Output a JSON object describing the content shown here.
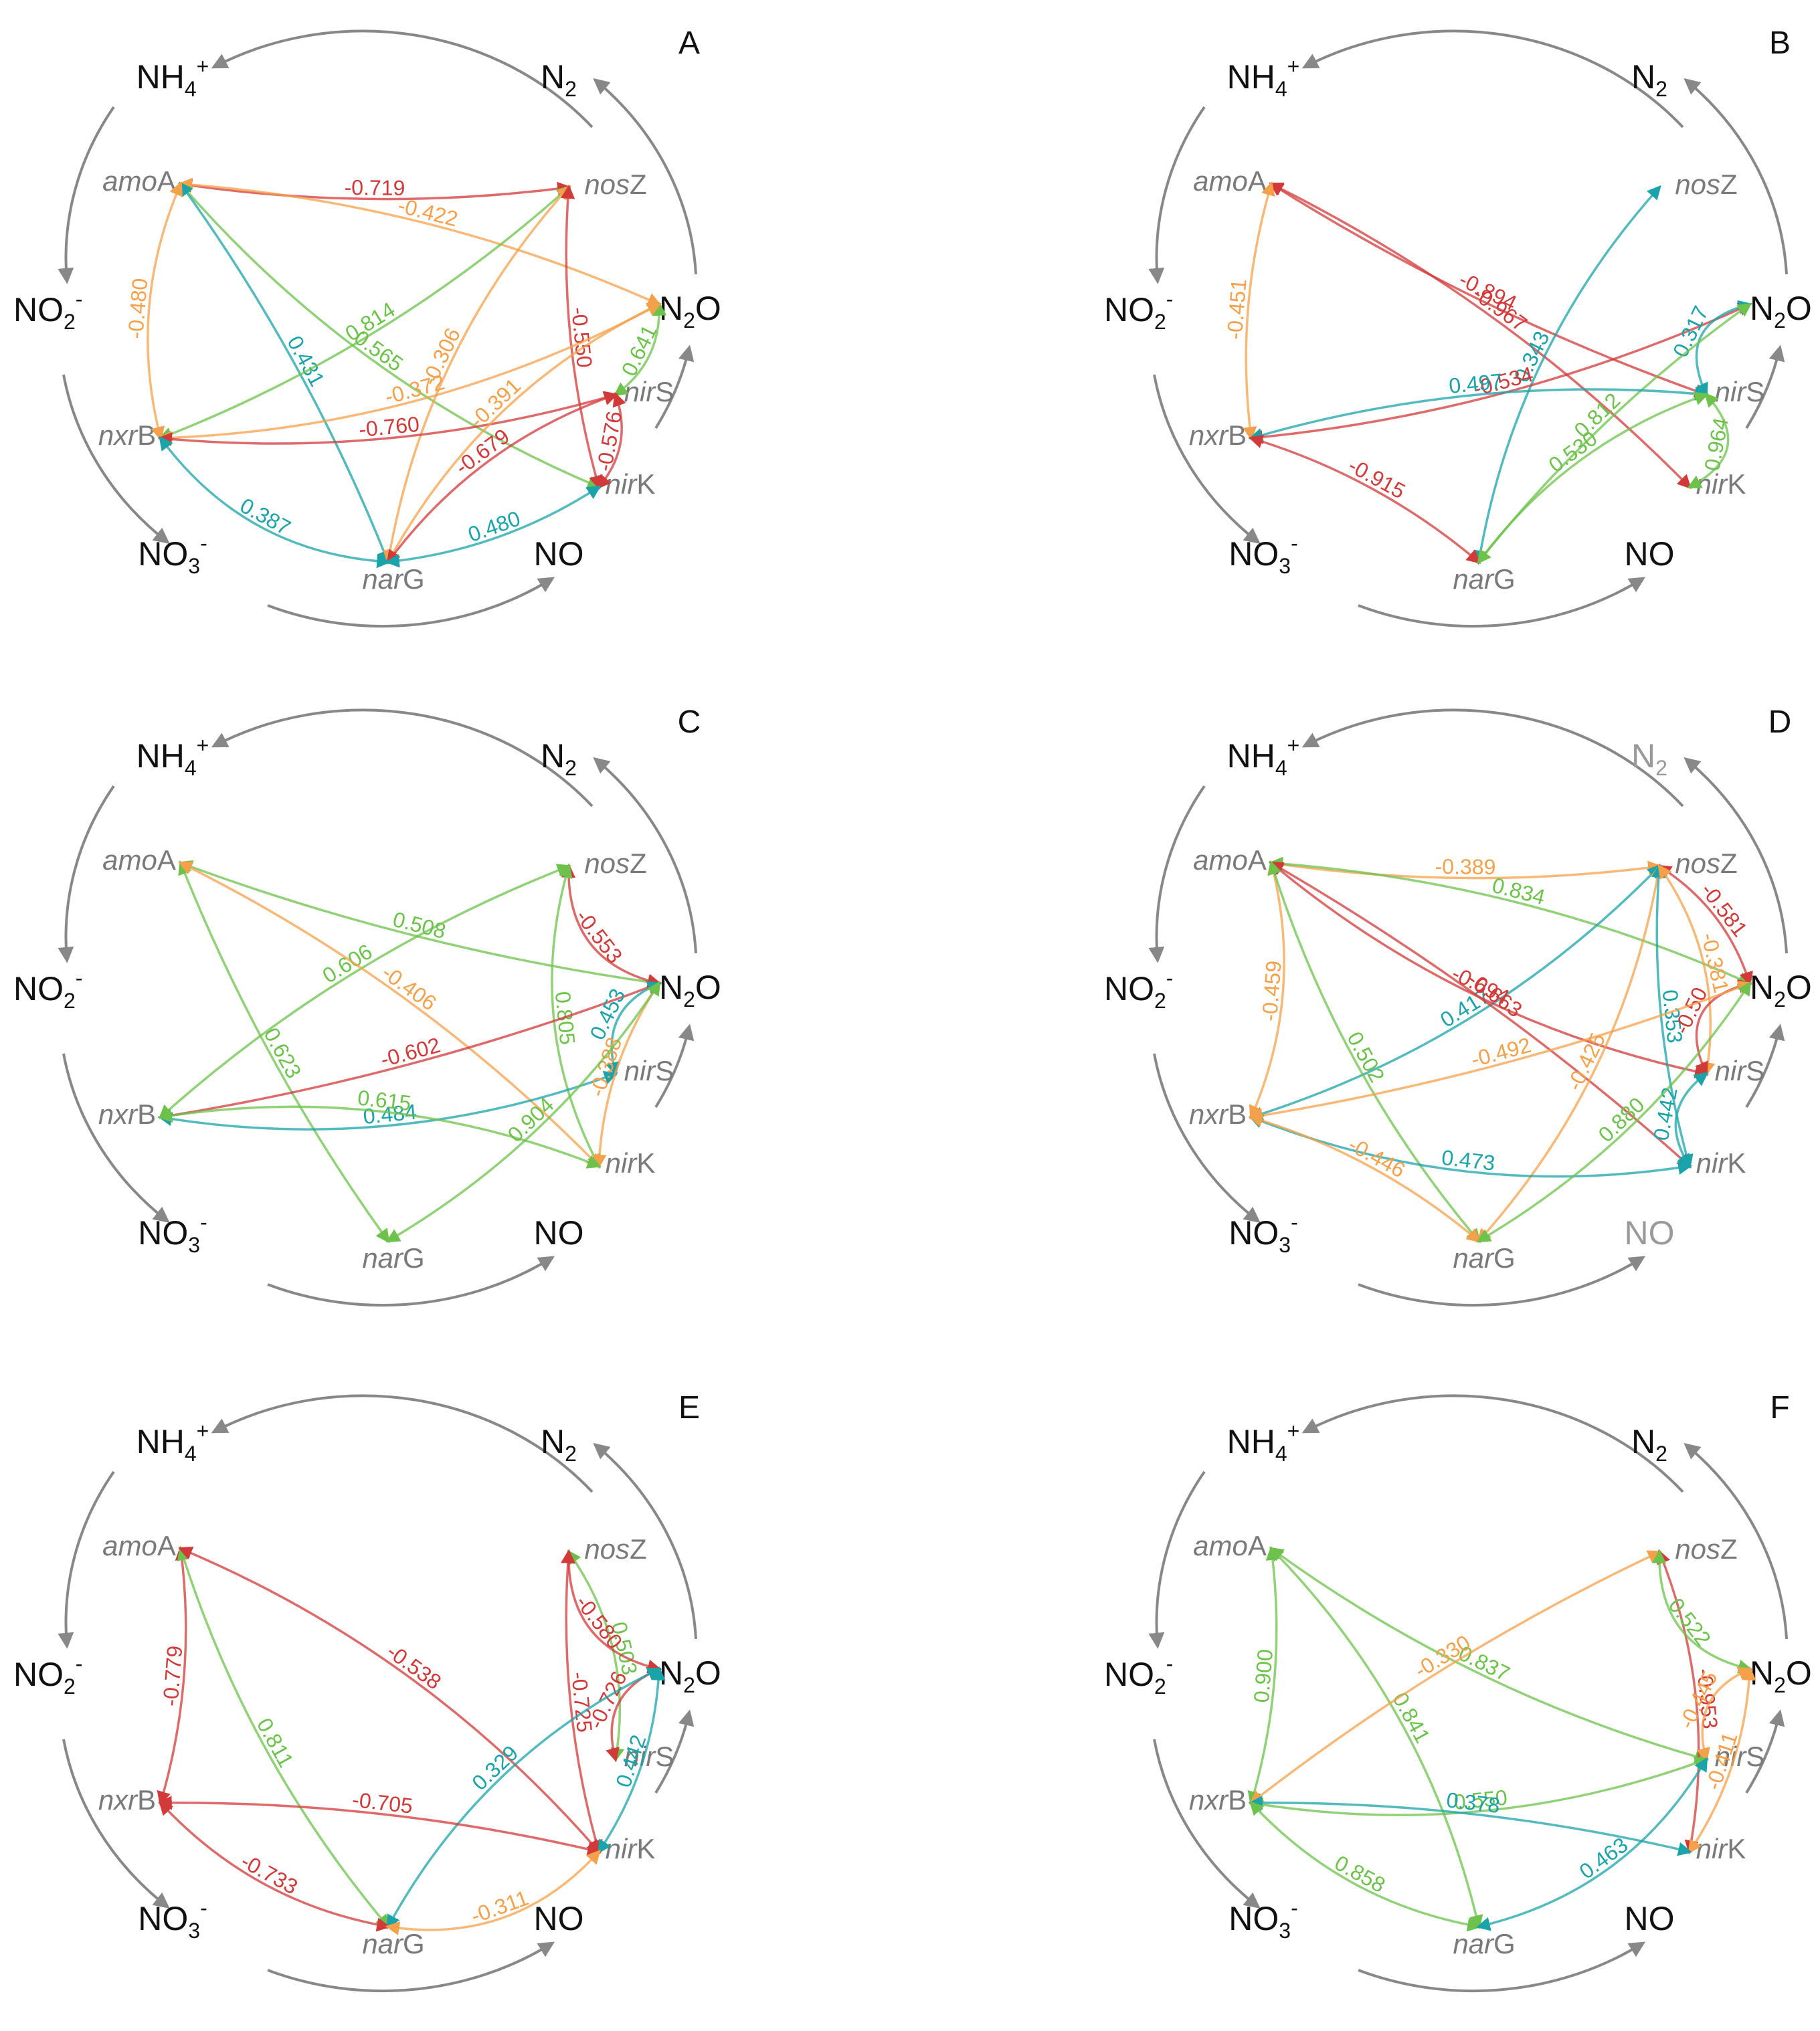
{
  "colors": {
    "positive_strong": "#1aa3a8",
    "positive": "#6cc24a",
    "negative_moderate": "#f5a04a",
    "negative_strong": "#d23a3a",
    "cycle": "#888888"
  },
  "icons": {
    "cycle_arrow": "cycle-arrow-icon",
    "edge_arrow": "edge-arrowhead-icon"
  },
  "species": {
    "nh4": {
      "base": "NH",
      "sub": "4",
      "sup": "+"
    },
    "n2": {
      "base": "N",
      "sub": "2"
    },
    "no2": {
      "base": "NO",
      "sub": "2",
      "sup": "-"
    },
    "n2o": {
      "base": "N",
      "sub": "2",
      "tail": "O"
    },
    "no3": {
      "base": "NO",
      "sub": "3",
      "sup": "-"
    },
    "no": {
      "base": "NO"
    }
  },
  "genes": {
    "amoA": {
      "italic": "amo",
      "suffix": "A"
    },
    "nosZ": {
      "italic": "nos",
      "suffix": "Z"
    },
    "nxrB": {
      "italic": "nxr",
      "suffix": "B"
    },
    "nirS": {
      "italic": "nir",
      "suffix": "S"
    },
    "nirK": {
      "italic": "nir",
      "suffix": "K"
    },
    "narG": {
      "italic": "nar",
      "suffix": "G"
    }
  },
  "panels": [
    {
      "letter": "A",
      "greyed": [],
      "edges": [
        {
          "from": "nosZ",
          "to": "amoA",
          "value": "-0.719",
          "color": "negative_strong"
        },
        {
          "from": "N2O",
          "to": "amoA",
          "value": "-0.422",
          "color": "negative_moderate"
        },
        {
          "from": "nirK",
          "to": "amoA",
          "value": "0.565",
          "color": "positive"
        },
        {
          "from": "narG",
          "to": "amoA",
          "value": "0.431",
          "color": "positive_strong"
        },
        {
          "from": "nosZ",
          "to": "nxrB",
          "value": "0.814",
          "color": "positive"
        },
        {
          "from": "nosZ",
          "to": "narG",
          "value": "-0.306",
          "color": "negative_moderate"
        },
        {
          "from": "nirK",
          "to": "nosZ",
          "value": "-0.550",
          "color": "negative_strong"
        },
        {
          "from": "amoA",
          "to": "nxrB",
          "value": "-0.480",
          "color": "negative_moderate"
        },
        {
          "from": "N2O",
          "to": "nxrB",
          "value": "-0.372",
          "color": "negative_moderate"
        },
        {
          "from": "nirS",
          "to": "N2O",
          "value": "0.641",
          "color": "positive"
        },
        {
          "from": "nirS",
          "to": "nxrB",
          "value": "-0.760",
          "color": "negative_strong"
        },
        {
          "from": "N2O",
          "to": "narG",
          "value": "-0.391",
          "color": "negative_moderate"
        },
        {
          "from": "nirS",
          "to": "nirK",
          "value": "-0.576",
          "color": "negative_strong"
        },
        {
          "from": "nirS",
          "to": "narG",
          "value": "-0.679",
          "color": "negative_strong"
        },
        {
          "from": "narG",
          "to": "nxrB",
          "value": "0.387",
          "color": "positive_strong"
        },
        {
          "from": "narG",
          "to": "nirK",
          "value": "0.480",
          "color": "positive_strong"
        }
      ]
    },
    {
      "letter": "B",
      "greyed": [],
      "edges": [
        {
          "from": "nirS",
          "to": "amoA",
          "value": "-0.894",
          "color": "negative_strong"
        },
        {
          "from": "nirK",
          "to": "amoA",
          "value": "-0.967",
          "color": "negative_strong"
        },
        {
          "from": "narG",
          "to": "nosZ",
          "value": "0.343",
          "color": "positive_strong"
        },
        {
          "from": "amoA",
          "to": "nxrB",
          "value": "-0.451",
          "color": "negative_moderate"
        },
        {
          "from": "N2O",
          "to": "nxrB",
          "value": "-0.534",
          "color": "negative_strong"
        },
        {
          "from": "N2O",
          "to": "nirS",
          "value": "0.317",
          "color": "positive_strong"
        },
        {
          "from": "narG",
          "to": "N2O",
          "value": "0.812",
          "color": "positive"
        },
        {
          "from": "nirS",
          "to": "nxrB",
          "value": "0.497",
          "color": "positive_strong"
        },
        {
          "from": "nirS",
          "to": "nirK",
          "value": "0.964",
          "color": "positive"
        },
        {
          "from": "narG",
          "to": "nxrB",
          "value": "-0.915",
          "color": "negative_strong"
        },
        {
          "from": "narG",
          "to": "nirS",
          "value": "0.530",
          "color": "positive"
        }
      ]
    },
    {
      "letter": "C",
      "greyed": [],
      "edges": [
        {
          "from": "N2O",
          "to": "amoA",
          "value": "0.508",
          "color": "positive"
        },
        {
          "from": "nosZ",
          "to": "nxrB",
          "value": "0.606",
          "color": "positive"
        },
        {
          "from": "N2O",
          "to": "nosZ",
          "value": "-0.553",
          "color": "negative_strong"
        },
        {
          "from": "amoA",
          "to": "narG",
          "value": "0.623",
          "color": "positive"
        },
        {
          "from": "amoA",
          "to": "nirK",
          "value": "-0.406",
          "color": "negative_moderate"
        },
        {
          "from": "nosZ",
          "to": "nirK",
          "value": "0.805",
          "color": "positive"
        },
        {
          "from": "N2O",
          "to": "nxrB",
          "value": "-0.602",
          "color": "negative_strong"
        },
        {
          "from": "N2O",
          "to": "nirS",
          "value": "0.453",
          "color": "positive_strong"
        },
        {
          "from": "nirS",
          "to": "nxrB",
          "value": "0.484",
          "color": "positive_strong"
        },
        {
          "from": "N2O",
          "to": "nirK",
          "value": "-0.388",
          "color": "negative_moderate"
        },
        {
          "from": "N2O",
          "to": "narG",
          "value": "0.904",
          "color": "positive"
        },
        {
          "from": "nirK",
          "to": "nxrB",
          "value": "0.615",
          "color": "positive"
        }
      ]
    },
    {
      "letter": "D",
      "greyed": [
        "N2",
        "NO"
      ],
      "edges": [
        {
          "from": "nosZ",
          "to": "amoA",
          "value": "-0.389",
          "color": "negative_moderate"
        },
        {
          "from": "N2O",
          "to": "amoA",
          "value": "0.834",
          "color": "positive"
        },
        {
          "from": "nosZ",
          "to": "nxrB",
          "value": "0.417",
          "color": "positive_strong"
        },
        {
          "from": "N2O",
          "to": "nosZ",
          "value": "-0.581",
          "color": "negative_strong"
        },
        {
          "from": "amoA",
          "to": "nxrB",
          "value": "-0.459",
          "color": "negative_moderate"
        },
        {
          "from": "amoA",
          "to": "nirS",
          "value": "-0.694",
          "color": "negative_strong"
        },
        {
          "from": "amoA",
          "to": "nirK",
          "value": "-0.663",
          "color": "negative_strong"
        },
        {
          "from": "amoA",
          "to": "narG",
          "value": "0.502",
          "color": "positive"
        },
        {
          "from": "nosZ",
          "to": "narG",
          "value": "-0.425",
          "color": "negative_moderate"
        },
        {
          "from": "nosZ",
          "to": "nirK",
          "value": "0.353",
          "color": "positive_strong"
        },
        {
          "from": "nosZ",
          "to": "nirS",
          "value": "-0.381",
          "color": "negative_moderate"
        },
        {
          "from": "N2O",
          "to": "nirS",
          "value": "-0.50",
          "color": "negative_strong"
        },
        {
          "from": "N2O",
          "to": "nxrB",
          "value": "-0.492",
          "color": "negative_moderate"
        },
        {
          "from": "nirS",
          "to": "nirK",
          "value": "0.442",
          "color": "positive_strong"
        },
        {
          "from": "nirK",
          "to": "nxrB",
          "value": "0.473",
          "color": "positive_strong"
        },
        {
          "from": "narG",
          "to": "nxrB",
          "value": "-0.446",
          "color": "negative_moderate"
        },
        {
          "from": "N2O",
          "to": "narG",
          "value": "0.880",
          "color": "positive"
        }
      ]
    },
    {
      "letter": "E",
      "greyed": [],
      "edges": [
        {
          "from": "amoA",
          "to": "nxrB",
          "value": "-0.779",
          "color": "negative_strong"
        },
        {
          "from": "amoA",
          "to": "narG",
          "value": "0.811",
          "color": "positive"
        },
        {
          "from": "amoA",
          "to": "nirK",
          "value": "-0.538",
          "color": "negative_strong"
        },
        {
          "from": "nosZ",
          "to": "nirK",
          "value": "-0.725",
          "color": "negative_strong"
        },
        {
          "from": "nosZ",
          "to": "nirS",
          "value": "0.503",
          "color": "positive"
        },
        {
          "from": "nosZ",
          "to": "N2O",
          "value": "-0.580",
          "color": "negative_strong"
        },
        {
          "from": "N2O",
          "to": "nirK",
          "value": "0.442",
          "color": "positive_strong"
        },
        {
          "from": "N2O",
          "to": "nirS",
          "value": "-0.726",
          "color": "negative_strong"
        },
        {
          "from": "narG",
          "to": "N2O",
          "value": "0.329",
          "color": "positive_strong"
        },
        {
          "from": "nirK",
          "to": "nxrB",
          "value": "-0.705",
          "color": "negative_strong"
        },
        {
          "from": "narG",
          "to": "nxrB",
          "value": "-0.733",
          "color": "negative_strong"
        },
        {
          "from": "narG",
          "to": "nirK",
          "value": "-0.311",
          "color": "negative_moderate"
        }
      ]
    },
    {
      "letter": "F",
      "greyed": [],
      "edges": [
        {
          "from": "amoA",
          "to": "nxrB",
          "value": "0.900",
          "color": "positive"
        },
        {
          "from": "amoA",
          "to": "nirS",
          "value": "0.837",
          "color": "positive"
        },
        {
          "from": "amoA",
          "to": "narG",
          "value": "0.841",
          "color": "positive"
        },
        {
          "from": "nosZ",
          "to": "nxrB",
          "value": "-0.330",
          "color": "negative_moderate"
        },
        {
          "from": "nosZ",
          "to": "nirK",
          "value": "-0.953",
          "color": "negative_strong"
        },
        {
          "from": "nosZ",
          "to": "N2O",
          "value": "0.522",
          "color": "positive"
        },
        {
          "from": "N2O",
          "to": "nirK",
          "value": "-0.411",
          "color": "negative_moderate"
        },
        {
          "from": "N2O",
          "to": "nirS",
          "value": "-0.445",
          "color": "negative_moderate"
        },
        {
          "from": "nirS",
          "to": "nxrB",
          "value": "0.550",
          "color": "positive"
        },
        {
          "from": "nirK",
          "to": "nxrB",
          "value": "0.378",
          "color": "positive_strong"
        },
        {
          "from": "narG",
          "to": "nxrB",
          "value": "0.858",
          "color": "positive"
        },
        {
          "from": "narG",
          "to": "nirS",
          "value": "0.463",
          "color": "positive_strong"
        }
      ]
    }
  ]
}
